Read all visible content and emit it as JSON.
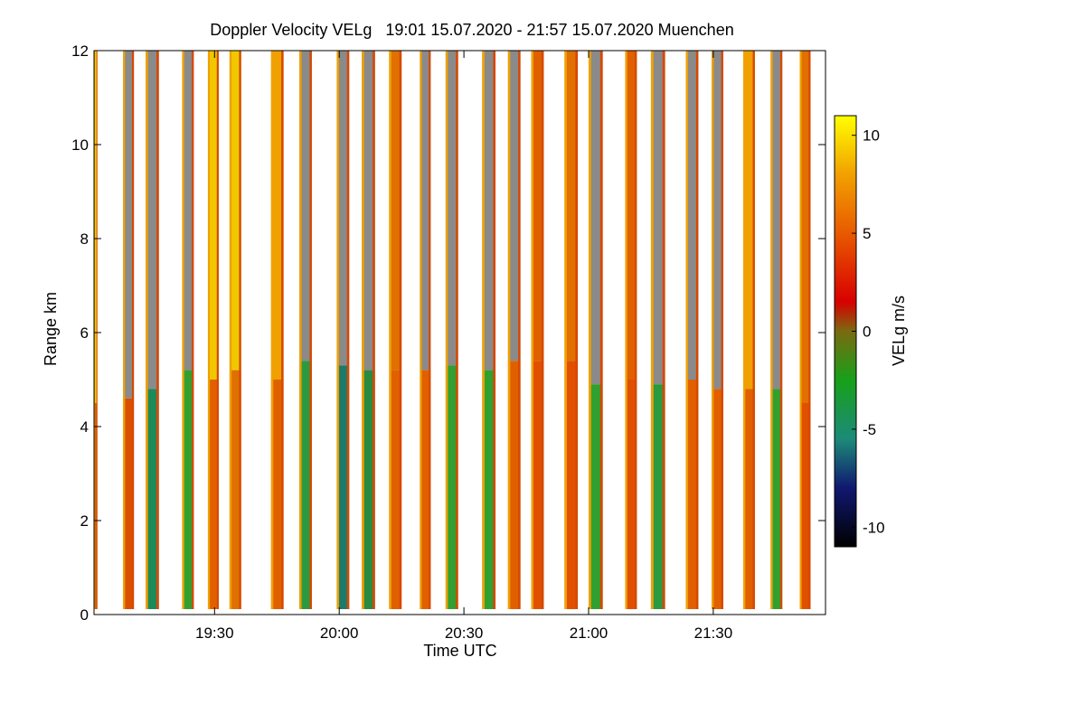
{
  "chart_data": {
    "type": "heatmap",
    "title": "Doppler Velocity VELg   19:01 15.07.2020 - 21:57 15.07.2020 Muenchen",
    "xlabel": "Time UTC",
    "ylabel": "Range km",
    "colorbar_label": "VELg m/s",
    "x_range_minutes_utc": [
      1141,
      1317
    ],
    "x_ticks": [
      {
        "label": "19:30",
        "value": 1170
      },
      {
        "label": "20:00",
        "value": 1200
      },
      {
        "label": "20:30",
        "value": 1230
      },
      {
        "label": "21:00",
        "value": 1260
      },
      {
        "label": "21:30",
        "value": 1290
      }
    ],
    "y_range_km": [
      0,
      12
    ],
    "y_ticks": [
      {
        "label": "0",
        "value": 0
      },
      {
        "label": "2",
        "value": 2
      },
      {
        "label": "4",
        "value": 4
      },
      {
        "label": "6",
        "value": 6
      },
      {
        "label": "8",
        "value": 8
      },
      {
        "label": "10",
        "value": 10
      },
      {
        "label": "12",
        "value": 12
      }
    ],
    "colorbar_range": [
      -11,
      11
    ],
    "colorbar_ticks": [
      {
        "label": "10",
        "value": 10
      },
      {
        "label": "5",
        "value": 5
      },
      {
        "label": "0",
        "value": 0
      },
      {
        "label": "-5",
        "value": -5
      },
      {
        "label": "-10",
        "value": -10
      }
    ],
    "colormap": [
      {
        "v": -11,
        "color": "#000000"
      },
      {
        "v": -8,
        "color": "#101870"
      },
      {
        "v": -5.5,
        "color": "#1d8a78"
      },
      {
        "v": -2.5,
        "color": "#17a01a"
      },
      {
        "v": 0,
        "color": "#7a6a10"
      },
      {
        "v": 1.5,
        "color": "#d80000"
      },
      {
        "v": 5,
        "color": "#e85a00"
      },
      {
        "v": 8,
        "color": "#f2a000"
      },
      {
        "v": 11,
        "color": "#ffff00"
      }
    ],
    "no_signal_color": "#8a8a8a",
    "profiles": [
      {
        "start": 1141.0,
        "end": 1141.8,
        "top_km": 12.0,
        "fill": "#f0c800",
        "lower_km": 4.5,
        "lower_fill": "#e06000"
      },
      {
        "start": 1148.0,
        "end": 1150.6,
        "top_km": 12.0,
        "fill": "#8a8a8a",
        "lower_km": 4.6,
        "lower_fill": "#d85000"
      },
      {
        "start": 1153.4,
        "end": 1156.6,
        "top_km": 12.0,
        "fill": "#8a8a8a",
        "lower_km": 4.8,
        "lower_fill": "#1d8a5a"
      },
      {
        "start": 1162.2,
        "end": 1165.0,
        "top_km": 12.0,
        "fill": "#8a8a8a",
        "lower_km": 5.2,
        "lower_fill": "#30a030"
      },
      {
        "start": 1168.4,
        "end": 1171.0,
        "top_km": 12.0,
        "fill": "#f0c800",
        "lower_km": 5.0,
        "lower_fill": "#e06000"
      },
      {
        "start": 1173.6,
        "end": 1176.4,
        "top_km": 12.0,
        "fill": "#f0c800",
        "lower_km": 5.2,
        "lower_fill": "#e07000"
      },
      {
        "start": 1183.6,
        "end": 1186.6,
        "top_km": 12.0,
        "fill": "#f0a000",
        "lower_km": 5.0,
        "lower_fill": "#e06000"
      },
      {
        "start": 1190.4,
        "end": 1193.4,
        "top_km": 12.0,
        "fill": "#8a8a8a",
        "lower_km": 5.4,
        "lower_fill": "#2a9a40"
      },
      {
        "start": 1199.4,
        "end": 1202.4,
        "top_km": 12.0,
        "fill": "#8a8a8a",
        "lower_km": 5.3,
        "lower_fill": "#1d7a6a"
      },
      {
        "start": 1205.4,
        "end": 1208.6,
        "top_km": 12.0,
        "fill": "#8a8a8a",
        "lower_km": 5.2,
        "lower_fill": "#2a8a40"
      },
      {
        "start": 1212.0,
        "end": 1215.0,
        "top_km": 12.0,
        "fill": "#e07000",
        "lower_km": 5.2,
        "lower_fill": "#e06000"
      },
      {
        "start": 1219.4,
        "end": 1222.0,
        "top_km": 12.0,
        "fill": "#8a8a8a",
        "lower_km": 5.2,
        "lower_fill": "#e06000"
      },
      {
        "start": 1225.6,
        "end": 1228.6,
        "top_km": 12.0,
        "fill": "#8a8a8a",
        "lower_km": 5.3,
        "lower_fill": "#30a030"
      },
      {
        "start": 1234.4,
        "end": 1237.6,
        "top_km": 12.0,
        "fill": "#8a8a8a",
        "lower_km": 5.2,
        "lower_fill": "#30a030"
      },
      {
        "start": 1240.6,
        "end": 1243.6,
        "top_km": 12.0,
        "fill": "#8a8a8a",
        "lower_km": 5.4,
        "lower_fill": "#e06000"
      },
      {
        "start": 1246.2,
        "end": 1249.2,
        "top_km": 12.0,
        "fill": "#e06000",
        "lower_km": 5.4,
        "lower_fill": "#e05000"
      },
      {
        "start": 1254.2,
        "end": 1257.4,
        "top_km": 12.0,
        "fill": "#e07000",
        "lower_km": 5.4,
        "lower_fill": "#e05000"
      },
      {
        "start": 1260.0,
        "end": 1263.4,
        "top_km": 12.0,
        "fill": "#8a8a8a",
        "lower_km": 4.9,
        "lower_fill": "#30a030"
      },
      {
        "start": 1268.8,
        "end": 1271.6,
        "top_km": 12.0,
        "fill": "#e06000",
        "lower_km": 5.0,
        "lower_fill": "#e05000"
      },
      {
        "start": 1275.0,
        "end": 1278.4,
        "top_km": 12.0,
        "fill": "#8a8a8a",
        "lower_km": 4.9,
        "lower_fill": "#2a9a40"
      },
      {
        "start": 1283.4,
        "end": 1286.4,
        "top_km": 12.0,
        "fill": "#8a8a8a",
        "lower_km": 5.0,
        "lower_fill": "#e06000"
      },
      {
        "start": 1289.6,
        "end": 1292.4,
        "top_km": 12.0,
        "fill": "#8a8a8a",
        "lower_km": 4.8,
        "lower_fill": "#e06000"
      },
      {
        "start": 1297.2,
        "end": 1300.0,
        "top_km": 12.0,
        "fill": "#f0a000",
        "lower_km": 4.8,
        "lower_fill": "#e06000"
      },
      {
        "start": 1303.8,
        "end": 1306.6,
        "top_km": 12.0,
        "fill": "#8a8a8a",
        "lower_km": 4.8,
        "lower_fill": "#30a030"
      },
      {
        "start": 1310.8,
        "end": 1313.4,
        "top_km": 12.0,
        "fill": "#e07000",
        "lower_km": 4.5,
        "lower_fill": "#e05000"
      }
    ]
  }
}
